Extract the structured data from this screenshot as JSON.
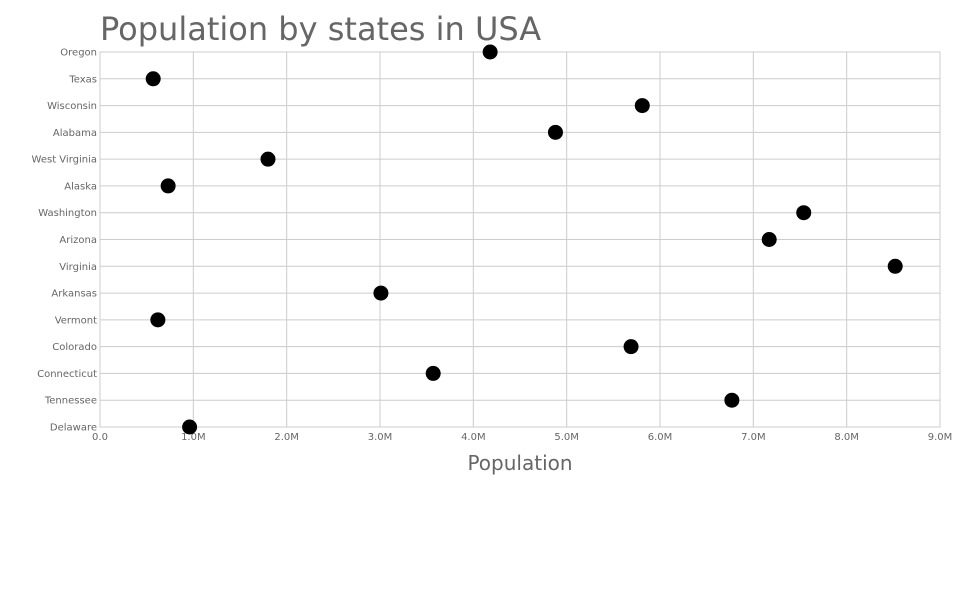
{
  "chart_data": {
    "type": "scatter",
    "title": "Population by states in USA",
    "xlabel": "Population",
    "ylabel": "",
    "xlim": [
      0,
      9000000
    ],
    "x_ticks": [
      "0.0",
      "1.0M",
      "2.0M",
      "3.0M",
      "4.0M",
      "5.0M",
      "6.0M",
      "7.0M",
      "8.0M",
      "9.0M"
    ],
    "grid": true,
    "categories": [
      "Oregon",
      "Texas",
      "Wisconsin",
      "Alabama",
      "West Virginia",
      "Alaska",
      "Washington",
      "Arizona",
      "Virginia",
      "Arkansas",
      "Vermont",
      "Colorado",
      "Connecticut",
      "Tennessee",
      "Delaware"
    ],
    "values": [
      4180000,
      570000,
      5810000,
      4880000,
      1800000,
      730000,
      7540000,
      7170000,
      8520000,
      3010000,
      620000,
      5690000,
      3570000,
      6770000,
      960000
    ],
    "point_color": "#000000",
    "grid_color": "#cccccc",
    "text_color": "#666666"
  }
}
